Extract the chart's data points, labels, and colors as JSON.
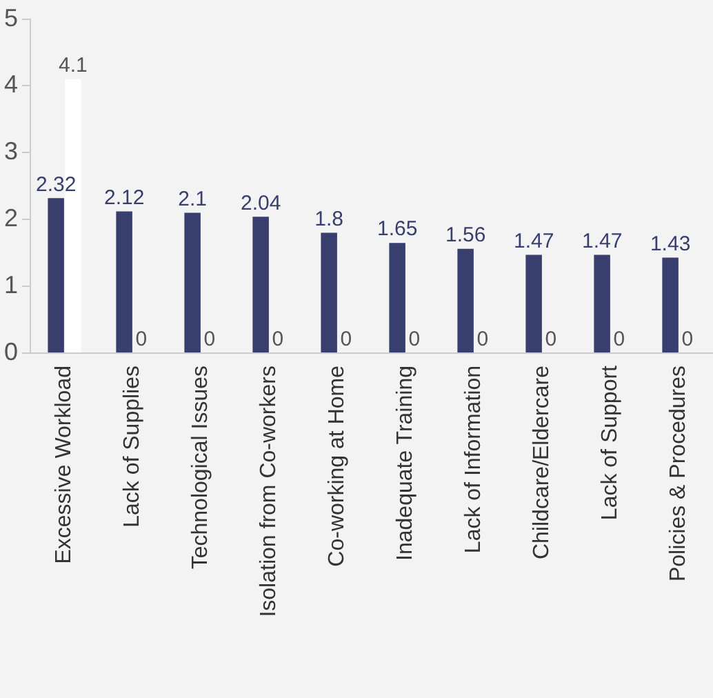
{
  "chart_data": {
    "type": "bar",
    "categories": [
      "Excessive Workload",
      "Lack of Supplies",
      "Technological Issues",
      "Isolation from Co-workers",
      "Co-working at Home",
      "Inadequate Training",
      "Lack of Information",
      "Childcare/Eldercare",
      "Lack of Support",
      "Policies & Procedures"
    ],
    "series": [
      {
        "color": "#383f6e",
        "values": [
          2.32,
          2.12,
          2.1,
          2.04,
          1.8,
          1.65,
          1.56,
          1.47,
          1.47,
          1.43
        ]
      },
      {
        "color": "#ffffff",
        "values": [
          4.1,
          0,
          0,
          0,
          0,
          0,
          0,
          0,
          0,
          0
        ]
      }
    ],
    "ylim": [
      0,
      5
    ],
    "yticks": [
      0,
      1,
      2,
      3,
      4,
      5
    ],
    "grid": false,
    "legend": false,
    "data_labels": true
  }
}
